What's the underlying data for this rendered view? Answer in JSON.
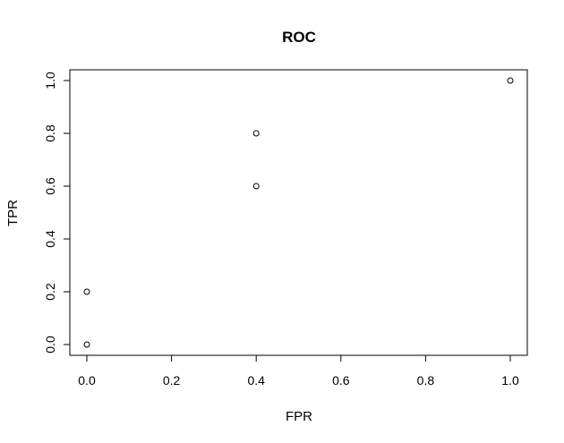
{
  "chart_data": {
    "type": "scatter",
    "title": "ROC",
    "xlabel": "FPR",
    "ylabel": "TPR",
    "xlim": [
      0,
      1
    ],
    "ylim": [
      0,
      1
    ],
    "xticks": [
      "0.0",
      "0.2",
      "0.4",
      "0.6",
      "0.8",
      "1.0"
    ],
    "yticks": [
      "0.0",
      "0.2",
      "0.4",
      "0.6",
      "0.8",
      "1.0"
    ],
    "grid": false,
    "legend": "none",
    "colors": {
      "point_stroke": "#000000",
      "point_fill": "#ffffff",
      "axis": "#000000"
    },
    "series": [
      {
        "x": [
          0.0,
          0.0,
          0.4,
          0.4,
          1.0
        ],
        "y": [
          0.0,
          0.2,
          0.6,
          0.8,
          1.0
        ]
      }
    ]
  }
}
